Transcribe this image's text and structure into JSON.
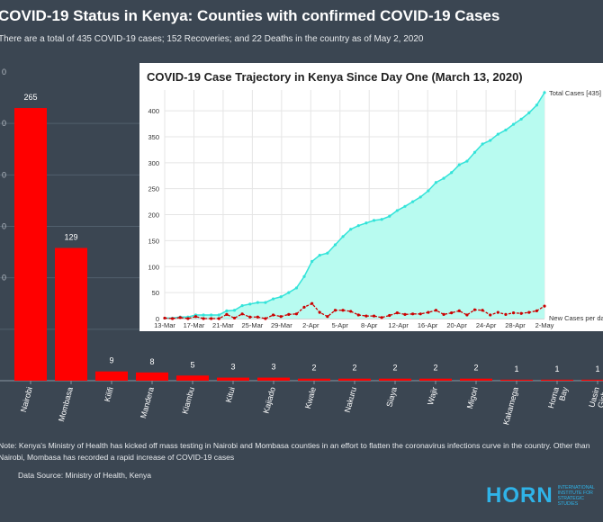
{
  "header": {
    "title": "COVID-19 Status in Kenya: Counties with confirmed COVID-19 Cases",
    "subtitle": "There are a total of 435 COVID-19 cases; 152 Recoveries; and 22 Deaths in the country as of May 2, 2020"
  },
  "colors": {
    "background": "#3b4652",
    "bar": "#ff0000",
    "area_fill": "#b8fbf0",
    "total_line": "#33e3d9",
    "new_line": "#cc0000"
  },
  "chart_data": [
    {
      "type": "bar",
      "title": "COVID-19 Status in Kenya: Counties with confirmed COVID-19 Cases",
      "categories": [
        "Nairobi",
        "Mombasa",
        "Kilifi",
        "Mandera",
        "Kiambu",
        "Kitui",
        "Kajiado",
        "Kwale",
        "Nakuru",
        "Siaya",
        "Wajir",
        "Migori",
        "Kakamega",
        "Homa Bay",
        "Uasin Gishu"
      ],
      "values": [
        265,
        129,
        9,
        8,
        5,
        3,
        3,
        2,
        2,
        2,
        2,
        2,
        1,
        1,
        1
      ],
      "ylim": [
        0,
        300
      ],
      "y_tick_labels": [
        "0",
        "0",
        "0",
        "0",
        "0"
      ],
      "grid": "horizontal",
      "data_labels": true
    },
    {
      "type": "area",
      "title": "COVID-19 Case Trajectory in Kenya Since Day One (March 13, 2020)",
      "x_tick_labels": [
        "13-Mar",
        "17-Mar",
        "21-Mar",
        "25-Mar",
        "29-Mar",
        "2-Apr",
        "5-Apr",
        "8-Apr",
        "12-Apr",
        "16-Apr",
        "20-Apr",
        "24-Apr",
        "28-Apr",
        "2-May"
      ],
      "y_ticks": [
        0,
        50,
        100,
        150,
        200,
        250,
        300,
        350,
        400
      ],
      "ylim": [
        0,
        440
      ],
      "grid": "both",
      "legend": "right",
      "series": [
        {
          "name": "Total Cases [435]",
          "values": [
            1,
            1,
            3,
            3,
            7,
            7,
            7,
            7,
            15,
            16,
            25,
            28,
            31,
            31,
            38,
            42,
            50,
            59,
            81,
            110,
            122,
            126,
            142,
            158,
            172,
            179,
            184,
            189,
            191,
            197,
            208,
            216,
            225,
            234,
            246,
            262,
            270,
            281,
            296,
            303,
            320,
            336,
            343,
            355,
            363,
            374,
            384,
            396,
            411,
            435
          ]
        },
        {
          "name": "New Cases per day",
          "values": [
            1,
            0,
            2,
            0,
            4,
            0,
            0,
            0,
            8,
            1,
            9,
            3,
            3,
            0,
            7,
            4,
            8,
            9,
            22,
            29,
            12,
            4,
            16,
            16,
            14,
            7,
            5,
            5,
            2,
            6,
            11,
            8,
            9,
            9,
            12,
            16,
            8,
            11,
            15,
            7,
            17,
            16,
            7,
            12,
            8,
            11,
            10,
            12,
            15,
            24
          ]
        }
      ]
    }
  ],
  "footer": {
    "note": "Note: Kenya's Ministry of Health has kicked off mass testing in Nairobi and Mombasa counties in an effort to flatten the coronavirus infections curve in the country. Other than Nairobi, Mombasa has recorded a rapid increase of COVID-19 cases",
    "source": "Data Source: Ministry of Health, Kenya"
  },
  "logo": {
    "word": "HORN",
    "tagline": "INTERNATIONAL INSTITUTE FOR STRATEGIC STUDIES"
  }
}
